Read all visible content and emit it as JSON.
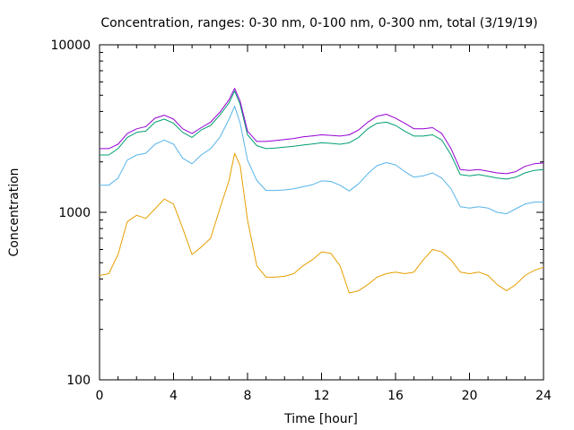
{
  "chart_data": {
    "type": "line",
    "title": "Concentration, ranges: 0-30 nm, 0-100 nm, 0-300 nm, total (3/19/19)",
    "xlabel": "Time [hour]",
    "ylabel": "Concentration",
    "xlim": [
      0,
      24
    ],
    "ylim": [
      100,
      10000
    ],
    "yscale": "log",
    "grid": false,
    "legend": "none",
    "x_ticks": [
      "0",
      "4",
      "8",
      "12",
      "16",
      "20",
      "24"
    ],
    "y_ticks": [
      "100",
      "1000",
      "10000"
    ],
    "x": [
      0,
      0.5,
      1,
      1.5,
      2,
      2.5,
      3,
      3.5,
      4,
      4.5,
      5,
      5.5,
      6,
      6.5,
      7,
      7.3,
      7.6,
      8,
      8.5,
      9,
      9.5,
      10,
      10.5,
      11,
      11.5,
      12,
      12.5,
      13,
      13.5,
      14,
      14.5,
      15,
      15.5,
      16,
      16.5,
      17,
      17.5,
      18,
      18.5,
      19,
      19.5,
      20,
      20.5,
      21,
      21.5,
      22,
      22.5,
      23,
      23.5,
      24
    ],
    "series": [
      {
        "color": "#e69f00",
        "values": [
          420,
          430,
          560,
          880,
          960,
          920,
          1050,
          1200,
          1120,
          800,
          560,
          620,
          700,
          1050,
          1550,
          2250,
          1900,
          900,
          480,
          410,
          410,
          415,
          430,
          480,
          520,
          580,
          570,
          480,
          330,
          340,
          370,
          410,
          430,
          440,
          430,
          440,
          520,
          600,
          580,
          520,
          440,
          430,
          440,
          420,
          370,
          340,
          370,
          420,
          450,
          470
        ]
      },
      {
        "color": "#56b4e9",
        "values": [
          1450,
          1450,
          1600,
          2050,
          2200,
          2250,
          2550,
          2700,
          2550,
          2100,
          1950,
          2200,
          2400,
          2800,
          3600,
          4300,
          3400,
          2050,
          1550,
          1350,
          1350,
          1360,
          1380,
          1420,
          1460,
          1540,
          1530,
          1450,
          1340,
          1480,
          1700,
          1900,
          1980,
          1920,
          1750,
          1620,
          1650,
          1720,
          1600,
          1380,
          1080,
          1060,
          1080,
          1060,
          1000,
          980,
          1050,
          1120,
          1150,
          1150
        ]
      },
      {
        "color": "#009e73",
        "values": [
          2200,
          2200,
          2400,
          2800,
          3000,
          3050,
          3450,
          3600,
          3400,
          3000,
          2800,
          3100,
          3300,
          3800,
          4500,
          5300,
          4400,
          2900,
          2500,
          2400,
          2420,
          2450,
          2480,
          2520,
          2560,
          2600,
          2580,
          2550,
          2600,
          2800,
          3150,
          3400,
          3450,
          3300,
          3050,
          2850,
          2850,
          2900,
          2700,
          2200,
          1680,
          1650,
          1680,
          1640,
          1600,
          1580,
          1620,
          1720,
          1780,
          1800
        ]
      },
      {
        "color": "#9400d3",
        "values": [
          2400,
          2400,
          2550,
          2950,
          3150,
          3250,
          3650,
          3800,
          3600,
          3150,
          2950,
          3200,
          3450,
          3950,
          4700,
          5500,
          4600,
          3050,
          2650,
          2650,
          2680,
          2720,
          2760,
          2820,
          2860,
          2900,
          2880,
          2850,
          2900,
          3100,
          3450,
          3750,
          3850,
          3650,
          3400,
          3150,
          3150,
          3200,
          2950,
          2400,
          1800,
          1780,
          1800,
          1760,
          1720,
          1700,
          1750,
          1880,
          1950,
          1970
        ]
      }
    ]
  }
}
